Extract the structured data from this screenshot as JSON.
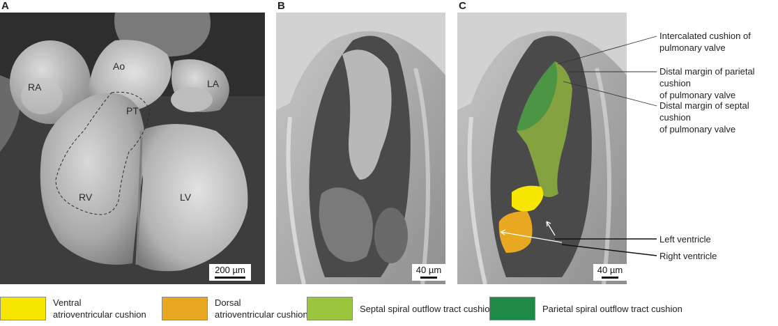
{
  "panels": [
    {
      "label": "A",
      "scale_bar": "200 µm"
    },
    {
      "label": "B",
      "scale_bar": "40 µm"
    },
    {
      "label": "C",
      "scale_bar": "40 µm"
    }
  ],
  "panel_a_labels": {
    "ra": "RA",
    "ao": "Ao",
    "la": "LA",
    "pt": "PT",
    "rv": "RV",
    "lv": "LV"
  },
  "callouts": [
    "Intercalated cushion of\npulmonary valve",
    "Distal margin of parietal cushion\nof pulmonary valve",
    "Distal margin of septal cushion\nof pulmonary valve",
    "Left ventricle",
    "Right ventricle"
  ],
  "legend": [
    {
      "label": "Ventral\natrioventricular cushion",
      "color": "#f7e600"
    },
    {
      "label": "Dorsal\natrioventricular cushion",
      "color": "#e8a821"
    },
    {
      "label": "Septal spiral outflow tract cushion",
      "color": "#9bc53d"
    },
    {
      "label": "Parietal spiral outflow tract cushion",
      "color": "#1f8a47"
    }
  ],
  "colors": {
    "ventral_cushion": "#f7e600",
    "dorsal_cushion": "#e8a821",
    "septal_cushion": "#9bc53d",
    "parietal_cushion": "#1f8a47"
  }
}
